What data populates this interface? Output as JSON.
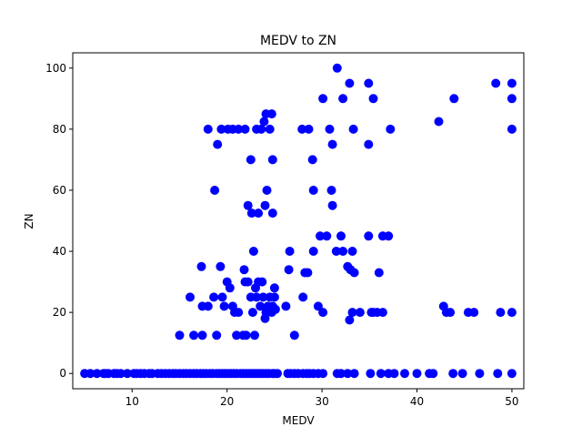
{
  "chart_data": {
    "type": "scatter",
    "title": "MEDV to ZN",
    "xlabel": "MEDV",
    "ylabel": "ZN",
    "xlim": [
      3.75,
      51.25
    ],
    "ylim": [
      -5,
      105
    ],
    "x_ticks": [
      10,
      20,
      30,
      40,
      50
    ],
    "y_ticks": [
      0,
      20,
      40,
      60,
      80,
      100
    ],
    "grid": false,
    "marker_color": "#0000ff",
    "points": [
      [
        5.0,
        0
      ],
      [
        5.6,
        0
      ],
      [
        6.3,
        0
      ],
      [
        7.0,
        0
      ],
      [
        7.2,
        0
      ],
      [
        7.5,
        0
      ],
      [
        8.1,
        0
      ],
      [
        8.4,
        0
      ],
      [
        8.8,
        0
      ],
      [
        9.5,
        0
      ],
      [
        10.2,
        0
      ],
      [
        10.5,
        0
      ],
      [
        10.9,
        0
      ],
      [
        11.3,
        0
      ],
      [
        11.8,
        0
      ],
      [
        12.1,
        0
      ],
      [
        12.7,
        0
      ],
      [
        13.1,
        0
      ],
      [
        13.5,
        0
      ],
      [
        13.9,
        0
      ],
      [
        14.3,
        0
      ],
      [
        14.6,
        0
      ],
      [
        15.0,
        0
      ],
      [
        15.4,
        0
      ],
      [
        15.7,
        0
      ],
      [
        16.1,
        0
      ],
      [
        16.5,
        0
      ],
      [
        16.8,
        0
      ],
      [
        17.2,
        0
      ],
      [
        17.5,
        0
      ],
      [
        17.8,
        0
      ],
      [
        18.2,
        0
      ],
      [
        18.5,
        0
      ],
      [
        18.9,
        0
      ],
      [
        19.2,
        0
      ],
      [
        19.5,
        0
      ],
      [
        19.8,
        0
      ],
      [
        20.1,
        0
      ],
      [
        20.4,
        0
      ],
      [
        20.7,
        0
      ],
      [
        21.0,
        0
      ],
      [
        21.4,
        0
      ],
      [
        21.7,
        0
      ],
      [
        22.0,
        0
      ],
      [
        22.3,
        0
      ],
      [
        22.6,
        0
      ],
      [
        22.9,
        0
      ],
      [
        23.2,
        0
      ],
      [
        23.5,
        0
      ],
      [
        23.8,
        0
      ],
      [
        24.1,
        0
      ],
      [
        24.4,
        0
      ],
      [
        24.8,
        0
      ],
      [
        25.0,
        0
      ],
      [
        25.3,
        0
      ],
      [
        26.4,
        0
      ],
      [
        26.7,
        0
      ],
      [
        27.1,
        0
      ],
      [
        27.5,
        0
      ],
      [
        28.0,
        0
      ],
      [
        28.4,
        0
      ],
      [
        28.7,
        0
      ],
      [
        29.1,
        0
      ],
      [
        29.6,
        0
      ],
      [
        30.1,
        0
      ],
      [
        31.6,
        0
      ],
      [
        32.0,
        0
      ],
      [
        32.7,
        0
      ],
      [
        33.4,
        0
      ],
      [
        35.1,
        0
      ],
      [
        36.2,
        0
      ],
      [
        37.0,
        0
      ],
      [
        37.6,
        0
      ],
      [
        38.7,
        0
      ],
      [
        40.0,
        0
      ],
      [
        41.3,
        0
      ],
      [
        41.7,
        0
      ],
      [
        43.8,
        0
      ],
      [
        44.8,
        0
      ],
      [
        46.6,
        0
      ],
      [
        48.5,
        0
      ],
      [
        50.0,
        0
      ],
      [
        15.0,
        12.5
      ],
      [
        16.5,
        12.5
      ],
      [
        17.4,
        12.5
      ],
      [
        18.9,
        12.5
      ],
      [
        21.0,
        12.5
      ],
      [
        21.7,
        12.5
      ],
      [
        22.0,
        12.5
      ],
      [
        22.9,
        12.5
      ],
      [
        27.1,
        12.5
      ],
      [
        16.1,
        25
      ],
      [
        17.4,
        22
      ],
      [
        18.0,
        22
      ],
      [
        18.6,
        25
      ],
      [
        19.5,
        25
      ],
      [
        19.7,
        22
      ],
      [
        20.0,
        30
      ],
      [
        20.3,
        28
      ],
      [
        20.6,
        22
      ],
      [
        20.8,
        20
      ],
      [
        21.2,
        20
      ],
      [
        21.8,
        34
      ],
      [
        21.9,
        30
      ],
      [
        22.2,
        30
      ],
      [
        22.5,
        25
      ],
      [
        22.7,
        20
      ],
      [
        23.0,
        28
      ],
      [
        23.1,
        25
      ],
      [
        23.3,
        30
      ],
      [
        23.5,
        22
      ],
      [
        23.7,
        30
      ],
      [
        23.8,
        25
      ],
      [
        24.0,
        18
      ],
      [
        24.1,
        20
      ],
      [
        24.3,
        22
      ],
      [
        24.5,
        25
      ],
      [
        24.7,
        20
      ],
      [
        24.8,
        22
      ],
      [
        25.0,
        28
      ],
      [
        25.0,
        25
      ],
      [
        25.1,
        21
      ],
      [
        26.2,
        22
      ],
      [
        26.5,
        34
      ],
      [
        28.0,
        25
      ],
      [
        28.2,
        33
      ],
      [
        28.5,
        33
      ],
      [
        29.6,
        22
      ],
      [
        30.1,
        20
      ],
      [
        32.9,
        17.5
      ],
      [
        33.2,
        20
      ],
      [
        34.0,
        20
      ],
      [
        35.2,
        20
      ],
      [
        35.8,
        20
      ],
      [
        36.4,
        20
      ],
      [
        42.8,
        22
      ],
      [
        43.1,
        20
      ],
      [
        43.5,
        20
      ],
      [
        45.4,
        20
      ],
      [
        46.0,
        20
      ],
      [
        48.8,
        20
      ],
      [
        50.0,
        20
      ],
      [
        17.3,
        35
      ],
      [
        19.3,
        35
      ],
      [
        22.8,
        40
      ],
      [
        26.6,
        40
      ],
      [
        29.1,
        40
      ],
      [
        29.8,
        45
      ],
      [
        30.5,
        45
      ],
      [
        31.5,
        40
      ],
      [
        32.0,
        45
      ],
      [
        32.2,
        40
      ],
      [
        32.7,
        35
      ],
      [
        33.0,
        34
      ],
      [
        33.2,
        40
      ],
      [
        33.4,
        33
      ],
      [
        34.9,
        45
      ],
      [
        35.4,
        20
      ],
      [
        36.0,
        33
      ],
      [
        36.4,
        45
      ],
      [
        37.0,
        45
      ],
      [
        22.2,
        55
      ],
      [
        22.6,
        52.5
      ],
      [
        23.3,
        52.5
      ],
      [
        24.0,
        55
      ],
      [
        18.7,
        60
      ],
      [
        24.2,
        60
      ],
      [
        24.8,
        52.5
      ],
      [
        29.1,
        60
      ],
      [
        31.1,
        55
      ],
      [
        31.0,
        60
      ],
      [
        22.5,
        70
      ],
      [
        24.8,
        70
      ],
      [
        29.0,
        70
      ],
      [
        18.0,
        80
      ],
      [
        19.0,
        75
      ],
      [
        19.4,
        80
      ],
      [
        20.1,
        80
      ],
      [
        20.6,
        80
      ],
      [
        21.2,
        80
      ],
      [
        21.9,
        80
      ],
      [
        23.1,
        80
      ],
      [
        23.6,
        80
      ],
      [
        23.9,
        82.5
      ],
      [
        24.1,
        85
      ],
      [
        24.5,
        80
      ],
      [
        24.7,
        85
      ],
      [
        27.9,
        80
      ],
      [
        28.6,
        80
      ],
      [
        30.1,
        90
      ],
      [
        30.8,
        80
      ],
      [
        31.1,
        75
      ],
      [
        31.6,
        100
      ],
      [
        32.2,
        90
      ],
      [
        32.9,
        95
      ],
      [
        33.3,
        80
      ],
      [
        34.9,
        75
      ],
      [
        34.9,
        95
      ],
      [
        35.4,
        90
      ],
      [
        37.2,
        80
      ],
      [
        42.3,
        82.5
      ],
      [
        43.9,
        90
      ],
      [
        48.3,
        95
      ],
      [
        50.0,
        95
      ],
      [
        50.0,
        90
      ],
      [
        50.0,
        80
      ]
    ]
  }
}
